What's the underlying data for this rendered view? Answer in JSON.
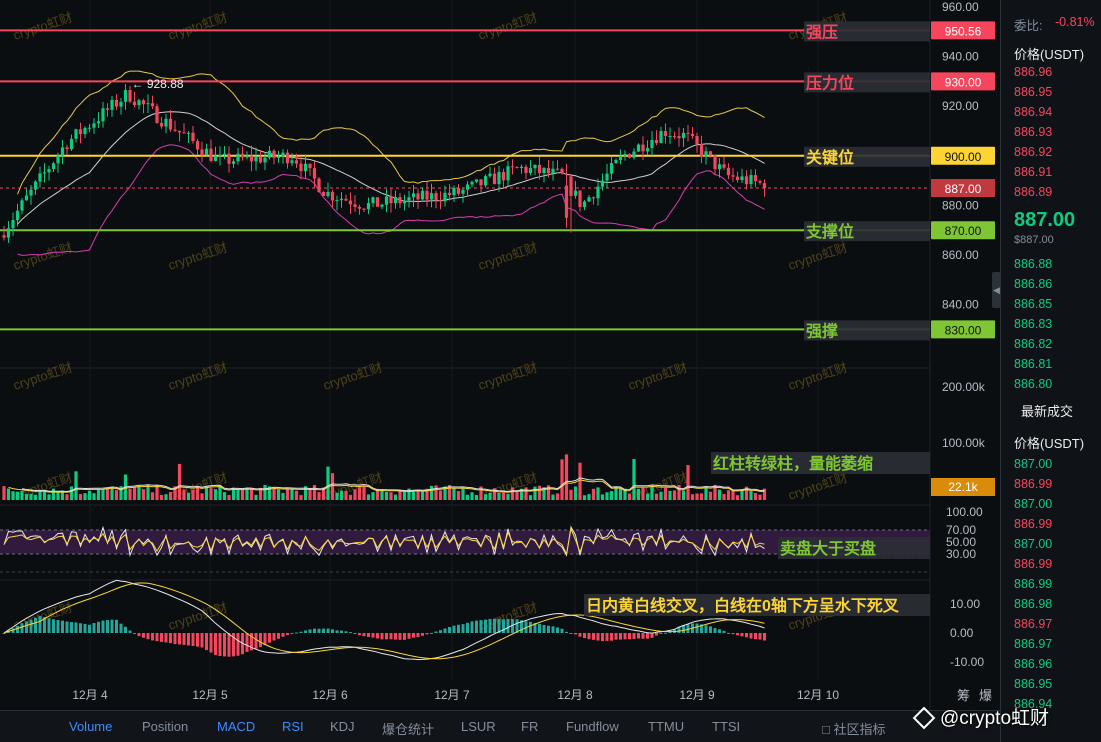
{
  "price_axis": {
    "ticks": [
      "960.00",
      "940.00",
      "920.00",
      "880.00",
      "860.00",
      "840.00"
    ],
    "tick_values": [
      960,
      940,
      920,
      880,
      860,
      840
    ]
  },
  "levels": [
    {
      "name": "strong-resistance",
      "label": "强压",
      "value": "950.56",
      "price": 950.56,
      "color": "#f6465d",
      "label_color": "#f6465d"
    },
    {
      "name": "resistance",
      "label": "压力位",
      "value": "930.00",
      "price": 930.0,
      "color": "#f6465d",
      "label_color": "#f6465d"
    },
    {
      "name": "key-level",
      "label": "关键位",
      "value": "900.00",
      "price": 900.0,
      "color": "#fcd535",
      "label_color": "#fcd535"
    },
    {
      "name": "support",
      "label": "支撑位",
      "value": "870.00",
      "price": 870.0,
      "color": "#7ec634",
      "label_color": "#7ec634"
    },
    {
      "name": "strong-support",
      "label": "强撑",
      "value": "830.00",
      "price": 830.0,
      "color": "#7ec634",
      "label_color": "#7ec634"
    }
  ],
  "current_price_tag": "887.00",
  "high_marker": "← 928.88",
  "volume_axis": [
    "200.00k",
    "100.00k"
  ],
  "volume_tag": "22.1k",
  "rsi_axis": [
    "100.00",
    "70.00",
    "50.00",
    "30.00"
  ],
  "macd_axis": [
    "10.00",
    "0.00",
    "-10.00"
  ],
  "annotations": {
    "volume": "红柱转绿柱，量能萎缩",
    "rsi": "卖盘大于买盘",
    "macd": "日内黄白线交叉，白线在0轴下方呈水下死叉"
  },
  "time_axis": [
    "12月 4",
    "12月 5",
    "12月 6",
    "12月 7",
    "12月 8",
    "12月 9",
    "12月 10"
  ],
  "watermark_text": "crypto虹财",
  "bottom_tabs": [
    {
      "label": "Volume",
      "active": true
    },
    {
      "label": "Position",
      "active": false
    },
    {
      "label": "MACD",
      "active": true
    },
    {
      "label": "RSI",
      "active": true
    },
    {
      "label": "KDJ",
      "active": false
    },
    {
      "label": "爆仓统计",
      "active": false
    },
    {
      "label": "LSUR",
      "active": false
    },
    {
      "label": "FR",
      "active": false
    },
    {
      "label": "Fundflow",
      "active": false
    },
    {
      "label": "TTMU",
      "active": false
    },
    {
      "label": "TTSI",
      "active": false
    }
  ],
  "community_indicators": "社区指标",
  "corner_labels": [
    "筹",
    "爆"
  ],
  "order_book": {
    "ratio_label": "委比:",
    "ratio_value": "-0.81%",
    "price_header": "价格(USDT)",
    "asks": [
      "886.96",
      "886.95",
      "886.94",
      "886.93",
      "886.92",
      "886.91",
      "886.89"
    ],
    "last_price": "887.00",
    "last_price_usd": "$887.00",
    "bids": [
      "886.88",
      "886.86",
      "886.85",
      "886.83",
      "886.82",
      "886.81",
      "886.80"
    ]
  },
  "trades": {
    "title": "最新成交",
    "price_header": "价格(USDT)",
    "rows": [
      {
        "price": "887.00",
        "side": "buy"
      },
      {
        "price": "886.99",
        "side": "sell"
      },
      {
        "price": "887.00",
        "side": "buy"
      },
      {
        "price": "886.99",
        "side": "sell"
      },
      {
        "price": "887.00",
        "side": "buy"
      },
      {
        "price": "886.99",
        "side": "sell"
      },
      {
        "price": "886.99",
        "side": "buy"
      },
      {
        "price": "886.98",
        "side": "buy"
      },
      {
        "price": "886.97",
        "side": "sell"
      },
      {
        "price": "886.97",
        "side": "buy"
      },
      {
        "price": "886.96",
        "side": "buy"
      },
      {
        "price": "886.95",
        "side": "buy"
      },
      {
        "price": "886.94",
        "side": "buy"
      }
    ]
  },
  "brand_watermark": "@crypto虹财",
  "colors": {
    "up": "#0ecb81",
    "down": "#f6465d",
    "yellow": "#fcd535",
    "accent": "#3d8bfd"
  }
}
